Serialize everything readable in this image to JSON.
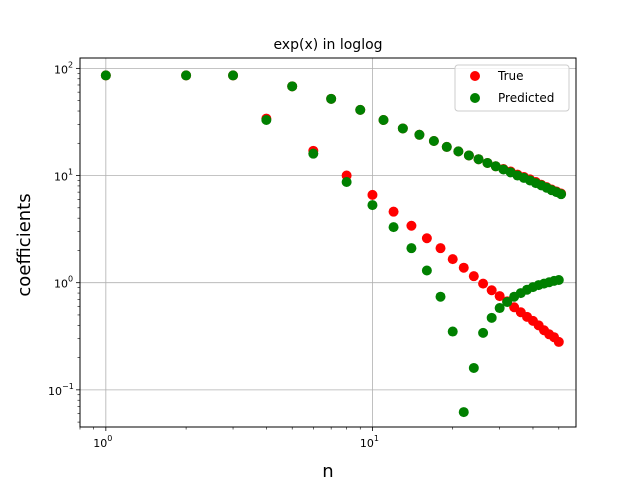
{
  "chart_data": {
    "type": "scatter",
    "title": "exp(x) in loglog",
    "xlabel": "n",
    "ylabel": "coefficients",
    "xscale": "log",
    "yscale": "log",
    "xlim": [
      0.8,
      58
    ],
    "ylim": [
      0.045,
      125
    ],
    "x_ticks": [
      1,
      10
    ],
    "x_tick_labels": [
      [
        "10",
        "0"
      ],
      [
        "10",
        "1"
      ]
    ],
    "y_ticks": [
      0.1,
      1,
      10,
      100
    ],
    "y_tick_labels": [
      [
        "10",
        "−1"
      ],
      [
        "10",
        "0"
      ],
      [
        "10",
        "1"
      ],
      [
        "10",
        "2"
      ]
    ],
    "grid": true,
    "legend_position": "top-right",
    "series": [
      {
        "name": "True",
        "color": "#ff0000",
        "points": [
          [
            1,
            86
          ],
          [
            2,
            86
          ],
          [
            3,
            86
          ],
          [
            4,
            34
          ],
          [
            6,
            17
          ],
          [
            8,
            10
          ],
          [
            10,
            6.6
          ],
          [
            12,
            4.6
          ],
          [
            14,
            3.4
          ],
          [
            16,
            2.6
          ],
          [
            18,
            2.1
          ],
          [
            20,
            1.66
          ],
          [
            22,
            1.38
          ],
          [
            24,
            1.15
          ],
          [
            26,
            0.98
          ],
          [
            28,
            0.85
          ],
          [
            30,
            0.75
          ],
          [
            32,
            0.67
          ],
          [
            34,
            0.59
          ],
          [
            36,
            0.53
          ],
          [
            38,
            0.48
          ],
          [
            40,
            0.44
          ],
          [
            42,
            0.4
          ],
          [
            44,
            0.36
          ],
          [
            46,
            0.33
          ],
          [
            48,
            0.31
          ],
          [
            50,
            0.28
          ],
          [
            5,
            68
          ],
          [
            7,
            52
          ],
          [
            9,
            41
          ],
          [
            11,
            33
          ],
          [
            13,
            27.5
          ],
          [
            15,
            24
          ],
          [
            17,
            21
          ],
          [
            19,
            18.5
          ],
          [
            21,
            16.8
          ],
          [
            23,
            15.4
          ],
          [
            25,
            14.2
          ],
          [
            27,
            13.1
          ],
          [
            29,
            12.2
          ],
          [
            31,
            11.5
          ],
          [
            33,
            10.9
          ],
          [
            35,
            10.2
          ],
          [
            37,
            9.7
          ],
          [
            39,
            9.2
          ],
          [
            41,
            8.7
          ],
          [
            43,
            8.2
          ],
          [
            45,
            7.8
          ],
          [
            47,
            7.4
          ],
          [
            49,
            7.1
          ],
          [
            51,
            6.8
          ]
        ]
      },
      {
        "name": "Predicted",
        "color": "#008000",
        "points": [
          [
            1,
            86
          ],
          [
            2,
            86
          ],
          [
            3,
            86
          ],
          [
            4,
            33
          ],
          [
            6,
            16
          ],
          [
            8,
            8.7
          ],
          [
            10,
            5.3
          ],
          [
            12,
            3.3
          ],
          [
            14,
            2.1
          ],
          [
            16,
            1.3
          ],
          [
            18,
            0.74
          ],
          [
            20,
            0.35
          ],
          [
            22,
            0.062
          ],
          [
            24,
            0.16
          ],
          [
            26,
            0.34
          ],
          [
            28,
            0.47
          ],
          [
            30,
            0.58
          ],
          [
            32,
            0.66
          ],
          [
            34,
            0.74
          ],
          [
            36,
            0.8
          ],
          [
            38,
            0.86
          ],
          [
            40,
            0.91
          ],
          [
            42,
            0.95
          ],
          [
            44,
            0.98
          ],
          [
            46,
            1.01
          ],
          [
            48,
            1.04
          ],
          [
            50,
            1.06
          ],
          [
            5,
            68
          ],
          [
            7,
            52
          ],
          [
            9,
            41
          ],
          [
            11,
            33
          ],
          [
            13,
            27.5
          ],
          [
            15,
            24
          ],
          [
            17,
            21
          ],
          [
            19,
            18.5
          ],
          [
            21,
            16.8
          ],
          [
            23,
            15.4
          ],
          [
            25,
            14.2
          ],
          [
            27,
            13.1
          ],
          [
            29,
            12.2
          ],
          [
            31,
            11.4
          ],
          [
            33,
            10.7
          ],
          [
            35,
            10.0
          ],
          [
            37,
            9.5
          ],
          [
            39,
            9.0
          ],
          [
            41,
            8.5
          ],
          [
            43,
            8.1
          ],
          [
            45,
            7.7
          ],
          [
            47,
            7.3
          ],
          [
            49,
            7.0
          ],
          [
            51,
            6.7
          ]
        ]
      }
    ]
  }
}
